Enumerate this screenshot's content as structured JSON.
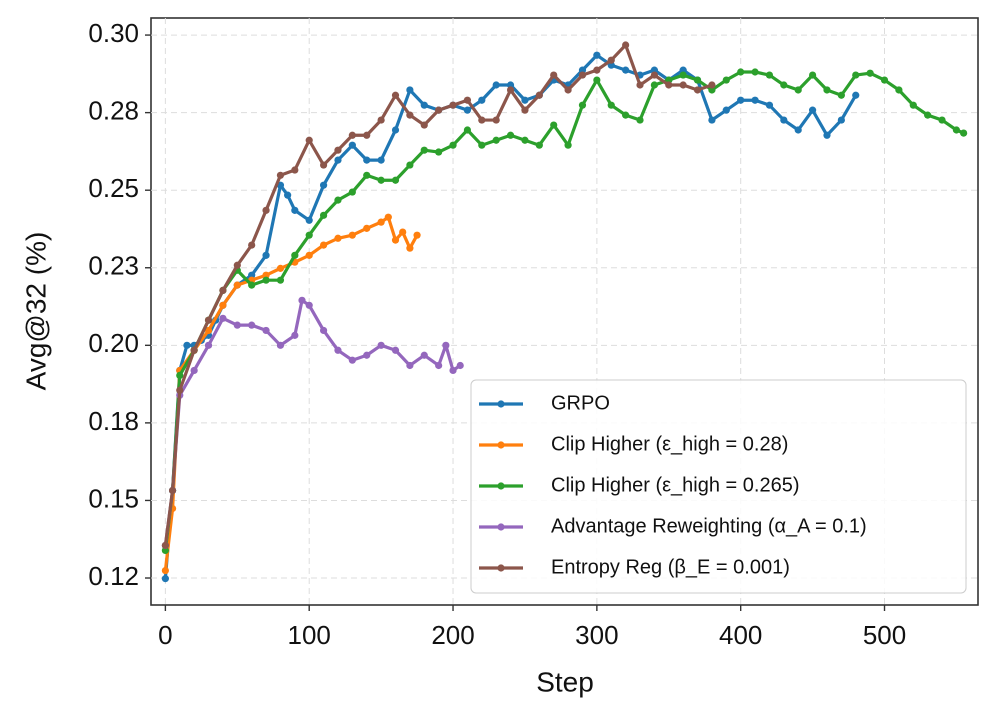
{
  "chart_data": {
    "type": "line",
    "xlabel": "Step",
    "ylabel": "Avg@32 (%)",
    "xlim": [
      -10,
      565
    ],
    "ylim": [
      0.1163,
      0.3055
    ],
    "xticks": [
      0,
      100,
      200,
      300,
      400,
      500
    ],
    "yticks": [
      {
        "value": 0.125,
        "label": "0.12"
      },
      0.15,
      {
        "value": 0.175,
        "label": "0.18"
      },
      {
        "value": 0.2,
        "label": "0.20"
      },
      {
        "value": 0.225,
        "label": "0.23"
      },
      0.25,
      {
        "value": 0.275,
        "label": "0.28"
      },
      {
        "value": 0.3,
        "label": "0.30"
      }
    ],
    "grid": true,
    "legend": "lower right",
    "series": [
      {
        "name": "GRPO",
        "color": "#1f77b4",
        "x": [
          0,
          5,
          10,
          15,
          20,
          25,
          30,
          35,
          40,
          50,
          60,
          70,
          80,
          85,
          90,
          100,
          110,
          120,
          130,
          140,
          150,
          160,
          170,
          180,
          190,
          200,
          210,
          220,
          230,
          240,
          250,
          260,
          270,
          280,
          290,
          300,
          310,
          320,
          330,
          340,
          350,
          360,
          370,
          380,
          390,
          400,
          410,
          420,
          430,
          440,
          450,
          460,
          470,
          480
        ],
        "values": [
          0.1248,
          0.1532,
          0.1919,
          0.2,
          0.2,
          0.2016,
          0.2032,
          0.2081,
          0.2129,
          0.2194,
          0.2226,
          0.229,
          0.2516,
          0.2484,
          0.2435,
          0.2403,
          0.2516,
          0.2597,
          0.2645,
          0.2597,
          0.2597,
          0.2694,
          0.2823,
          0.2774,
          0.2758,
          0.2774,
          0.2758,
          0.279,
          0.2839,
          0.2839,
          0.279,
          0.2806,
          0.2855,
          0.2839,
          0.2887,
          0.2935,
          0.2903,
          0.2887,
          0.2871,
          0.2887,
          0.2855,
          0.2887,
          0.2855,
          0.2726,
          0.2758,
          0.279,
          0.279,
          0.2774,
          0.2726,
          0.2694,
          0.2758,
          0.2677,
          0.2726,
          0.2806
        ]
      },
      {
        "name": "Clip Higher (ε_high = 0.28)",
        "color": "#ff7f0e",
        "x": [
          0,
          5,
          10,
          20,
          30,
          40,
          50,
          60,
          70,
          80,
          90,
          100,
          110,
          120,
          130,
          140,
          150,
          155,
          160,
          165,
          170,
          175
        ],
        "values": [
          0.1274,
          0.1474,
          0.1919,
          0.1984,
          0.2048,
          0.2129,
          0.2194,
          0.221,
          0.2226,
          0.2248,
          0.2268,
          0.229,
          0.2323,
          0.2345,
          0.2355,
          0.2377,
          0.2397,
          0.2413,
          0.2339,
          0.2365,
          0.2313,
          0.2355
        ]
      },
      {
        "name": "Clip Higher (ε_high = 0.265)",
        "color": "#2ca02c",
        "x": [
          0,
          5,
          10,
          20,
          30,
          40,
          50,
          60,
          70,
          80,
          90,
          100,
          110,
          120,
          130,
          140,
          150,
          160,
          170,
          180,
          190,
          200,
          210,
          220,
          230,
          240,
          250,
          260,
          270,
          280,
          290,
          300,
          310,
          320,
          330,
          340,
          350,
          360,
          370,
          380,
          390,
          400,
          410,
          420,
          430,
          440,
          450,
          460,
          470,
          480,
          490,
          500,
          510,
          520,
          530,
          540,
          550,
          555
        ],
        "values": [
          0.1339,
          0.1532,
          0.1903,
          0.1984,
          0.2081,
          0.2177,
          0.2242,
          0.2194,
          0.221,
          0.221,
          0.229,
          0.2355,
          0.2419,
          0.2468,
          0.2494,
          0.2548,
          0.2532,
          0.2532,
          0.2581,
          0.2629,
          0.2623,
          0.2645,
          0.2694,
          0.2645,
          0.2661,
          0.2677,
          0.2661,
          0.2645,
          0.271,
          0.2645,
          0.2774,
          0.2855,
          0.2774,
          0.2742,
          0.2726,
          0.2839,
          0.2855,
          0.2871,
          0.2855,
          0.2823,
          0.2855,
          0.2881,
          0.2881,
          0.2871,
          0.2839,
          0.2823,
          0.2871,
          0.2823,
          0.2806,
          0.2871,
          0.2877,
          0.2855,
          0.2823,
          0.2774,
          0.2742,
          0.2726,
          0.2694,
          0.2684
        ]
      },
      {
        "name": "Advantage Reweighting (α_A = 0.1)",
        "color": "#9467bd",
        "x": [
          0,
          5,
          10,
          20,
          30,
          40,
          50,
          60,
          70,
          80,
          90,
          95,
          100,
          110,
          120,
          130,
          140,
          150,
          160,
          170,
          180,
          190,
          195,
          200,
          205
        ],
        "values": [
          0.1355,
          0.1532,
          0.1839,
          0.1919,
          0.2,
          0.2087,
          0.2065,
          0.2065,
          0.2048,
          0.2,
          0.2032,
          0.2145,
          0.2129,
          0.2048,
          0.1984,
          0.1952,
          0.1968,
          0.2,
          0.1984,
          0.1935,
          0.1968,
          0.1935,
          0.2,
          0.1919,
          0.1935
        ]
      },
      {
        "name": "Entropy Reg (β_E = 0.001)",
        "color": "#8c564b",
        "x": [
          0,
          5,
          10,
          20,
          30,
          40,
          50,
          60,
          70,
          80,
          90,
          100,
          110,
          120,
          130,
          140,
          150,
          160,
          170,
          180,
          190,
          200,
          210,
          220,
          230,
          240,
          250,
          260,
          270,
          280,
          290,
          300,
          310,
          320,
          330,
          340,
          350,
          360,
          370,
          380
        ],
        "values": [
          0.1355,
          0.1532,
          0.1855,
          0.1984,
          0.2081,
          0.2177,
          0.2258,
          0.2323,
          0.2435,
          0.2548,
          0.2565,
          0.2661,
          0.2581,
          0.2629,
          0.2677,
          0.2677,
          0.2726,
          0.2806,
          0.2742,
          0.271,
          0.2758,
          0.2774,
          0.279,
          0.2726,
          0.2726,
          0.2823,
          0.2758,
          0.2806,
          0.2871,
          0.2823,
          0.2871,
          0.2887,
          0.2919,
          0.2968,
          0.2839,
          0.2871,
          0.2839,
          0.2839,
          0.2823,
          0.2839
        ]
      }
    ]
  }
}
